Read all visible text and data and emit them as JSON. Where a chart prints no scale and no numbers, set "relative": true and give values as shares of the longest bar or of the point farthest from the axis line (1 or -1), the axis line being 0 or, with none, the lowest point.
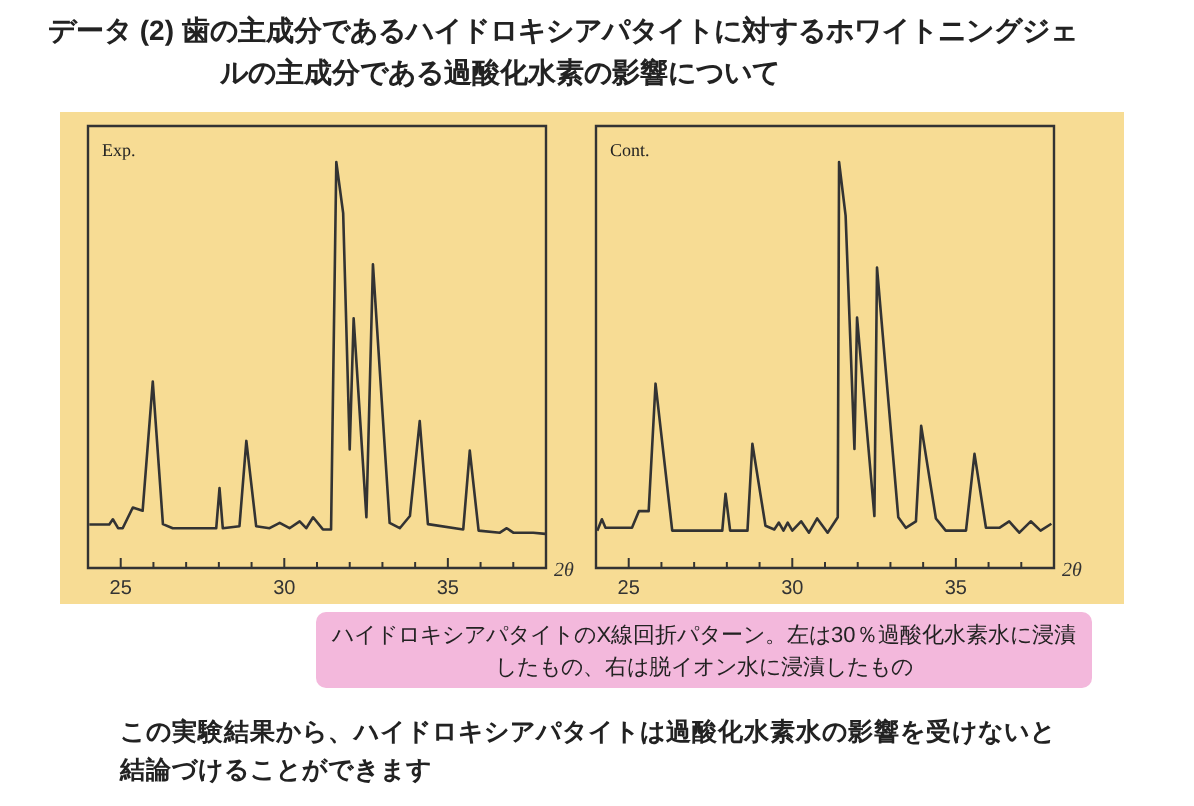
{
  "chart_data": [
    {
      "type": "other",
      "title": "データ (2) 歯の主成分であるハイドロキシアパタイトに対するホワイトニングジェルの主成分である過酸化水素の影響について",
      "annotations": [
        "ハイドロキシアパタイトのX線回折パターン。左は30％過酸化水素水に浸漬したもの、右は脱イオン水に浸漬したもの",
        "この実験結果から、ハイドロキシアパタイトは過酸化水素水の影響を受けないと結論づけることができます"
      ]
    },
    {
      "type": "line",
      "title": "Exp.",
      "xlabel": "2θ",
      "relative": true,
      "color": "#333333",
      "marker": "none",
      "line_style": "solid",
      "xlim": [
        24,
        38
      ],
      "xticks": [
        25,
        {
          "value": 26,
          "label": null
        },
        {
          "value": 27,
          "label": null
        },
        {
          "value": 28,
          "label": null
        },
        {
          "value": 29,
          "label": null
        },
        30,
        {
          "value": 31,
          "label": null
        },
        {
          "value": 32,
          "label": null
        },
        {
          "value": 33,
          "label": null
        },
        {
          "value": 34,
          "label": null
        },
        35,
        {
          "value": 36,
          "label": null
        },
        {
          "value": 37,
          "label": null
        }
      ],
      "x": [
        24.04,
        24.65,
        24.76,
        24.92,
        25.06,
        25.37,
        25.67,
        25.98,
        26.29,
        26.59,
        27.41,
        27.92,
        28.02,
        28.12,
        28.63,
        28.84,
        29.14,
        29.55,
        29.86,
        30.16,
        30.47,
        30.67,
        30.88,
        31.18,
        31.43,
        31.59,
        31.8,
        32.0,
        32.12,
        32.51,
        32.71,
        33.22,
        33.53,
        33.84,
        34.14,
        34.39,
        35.47,
        35.67,
        35.94,
        36.59,
        36.8,
        37.0,
        37.61,
        37.98
      ],
      "values": [
        0.107,
        0.107,
        0.12,
        0.098,
        0.098,
        0.149,
        0.141,
        0.459,
        0.108,
        0.098,
        0.098,
        0.098,
        0.197,
        0.098,
        0.103,
        0.313,
        0.103,
        0.098,
        0.111,
        0.098,
        0.115,
        0.098,
        0.125,
        0.095,
        0.095,
        1.0,
        0.874,
        0.292,
        0.615,
        0.125,
        0.748,
        0.111,
        0.098,
        0.128,
        0.362,
        0.108,
        0.095,
        0.289,
        0.092,
        0.087,
        0.098,
        0.087,
        0.087,
        0.084
      ]
    },
    {
      "type": "line",
      "title": "Cont.",
      "xlabel": "2θ",
      "relative": true,
      "color": "#333333",
      "marker": "none",
      "line_style": "solid",
      "xlim": [
        24,
        38
      ],
      "xticks": [
        25,
        {
          "value": 26,
          "label": null
        },
        {
          "value": 27,
          "label": null
        },
        {
          "value": 28,
          "label": null
        },
        {
          "value": 29,
          "label": null
        },
        30,
        {
          "value": 31,
          "label": null
        },
        {
          "value": 32,
          "label": null
        },
        {
          "value": 33,
          "label": null
        },
        {
          "value": 34,
          "label": null
        },
        35,
        {
          "value": 36,
          "label": null
        },
        {
          "value": 37,
          "label": null
        }
      ],
      "x": [
        24.04,
        24.18,
        24.29,
        25.1,
        25.31,
        25.61,
        25.82,
        26.33,
        27.86,
        27.96,
        28.1,
        28.63,
        28.78,
        29.18,
        29.45,
        29.59,
        29.73,
        29.86,
        30.0,
        30.27,
        30.51,
        30.76,
        31.08,
        31.39,
        31.43,
        31.63,
        31.9,
        31.98,
        32.51,
        32.59,
        33.24,
        33.47,
        33.78,
        33.94,
        34.39,
        34.69,
        35.31,
        35.57,
        35.92,
        36.33,
        36.63,
        36.94,
        37.29,
        37.59,
        37.92
      ],
      "values": [
        0.092,
        0.12,
        0.099,
        0.099,
        0.14,
        0.14,
        0.454,
        0.092,
        0.092,
        0.183,
        0.092,
        0.092,
        0.306,
        0.104,
        0.095,
        0.112,
        0.092,
        0.112,
        0.092,
        0.115,
        0.087,
        0.122,
        0.087,
        0.125,
        1.0,
        0.868,
        0.293,
        0.617,
        0.128,
        0.74,
        0.125,
        0.099,
        0.115,
        0.35,
        0.122,
        0.092,
        0.092,
        0.281,
        0.099,
        0.099,
        0.115,
        0.087,
        0.115,
        0.092,
        0.109
      ]
    }
  ]
}
